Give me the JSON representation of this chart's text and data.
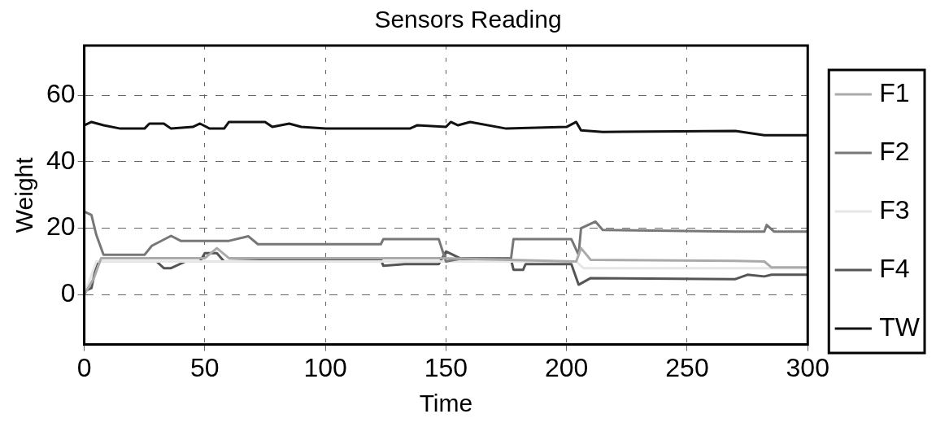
{
  "chart_data": {
    "type": "line",
    "title": "Sensors Reading",
    "xlabel": "Time",
    "ylabel": "Weight",
    "xlim": [
      0,
      300
    ],
    "xticks": [
      0,
      50,
      100,
      150,
      200,
      250,
      300
    ],
    "ylim": [
      -15,
      75
    ],
    "yticks": [
      0,
      20,
      40,
      60
    ],
    "grid": true,
    "legend": "right",
    "marker": "none",
    "series": [
      {
        "name": "F1",
        "color": "#aaaaaa",
        "x": [
          0,
          4,
          7,
          50,
          55,
          60,
          148,
          204,
          206,
          210,
          270,
          282,
          285,
          300
        ],
        "values": [
          0,
          5,
          11,
          11,
          14,
          11,
          11,
          10,
          14,
          10.5,
          10.2,
          10,
          8.2,
          8.2
        ]
      },
      {
        "name": "F2",
        "color": "#777777",
        "x": [
          0,
          3,
          5,
          8,
          25,
          28,
          36,
          40,
          60,
          68,
          72,
          123,
          124,
          147,
          150,
          157,
          177,
          178,
          202,
          205,
          206,
          212,
          215,
          270,
          282,
          283,
          286,
          300
        ],
        "values": [
          25,
          24,
          18,
          12,
          12,
          14.7,
          17.7,
          16.2,
          16.2,
          17.6,
          15.2,
          15.2,
          16.7,
          16.7,
          10,
          11,
          11,
          16.7,
          16.7,
          12,
          20,
          22,
          19.5,
          19,
          19,
          21,
          19,
          19
        ]
      },
      {
        "name": "F3",
        "color": "#e6e6e6",
        "x": [
          0,
          5,
          148,
          204,
          207,
          300
        ],
        "values": [
          0,
          10,
          10,
          10,
          8,
          8
        ]
      },
      {
        "name": "F4",
        "color": "#555555",
        "x": [
          0,
          3,
          5,
          6,
          30,
          33,
          36,
          42,
          48,
          50,
          55,
          58,
          98,
          123,
          124,
          133,
          147,
          150,
          153,
          157,
          177,
          178,
          182,
          183,
          202,
          205,
          210,
          270,
          275,
          282,
          285,
          300
        ],
        "values": [
          1,
          2,
          9,
          10,
          10,
          8,
          8,
          10,
          10,
          12.5,
          12.5,
          10,
          10.7,
          10.7,
          8.7,
          9.2,
          9.2,
          13,
          12,
          10.5,
          10.5,
          7.5,
          7.5,
          9.2,
          9.2,
          3,
          5,
          4.7,
          6,
          5.5,
          6,
          6
        ]
      },
      {
        "name": "TW",
        "color": "#111111",
        "x": [
          0,
          3,
          8,
          15,
          25,
          27,
          33,
          36,
          45,
          48,
          52,
          58,
          60,
          75,
          78,
          85,
          90,
          100,
          135,
          138,
          150,
          152,
          155,
          160,
          175,
          200,
          204,
          206,
          215,
          270,
          282,
          300
        ],
        "values": [
          51,
          52,
          51,
          50,
          50,
          51.5,
          51.5,
          50,
          50.5,
          51.5,
          50,
          50,
          52,
          52,
          50.5,
          51.5,
          50.5,
          50,
          50,
          51,
          50.5,
          52,
          51,
          52,
          50,
          50.5,
          52,
          49.5,
          49,
          49.3,
          48,
          48
        ]
      }
    ]
  }
}
